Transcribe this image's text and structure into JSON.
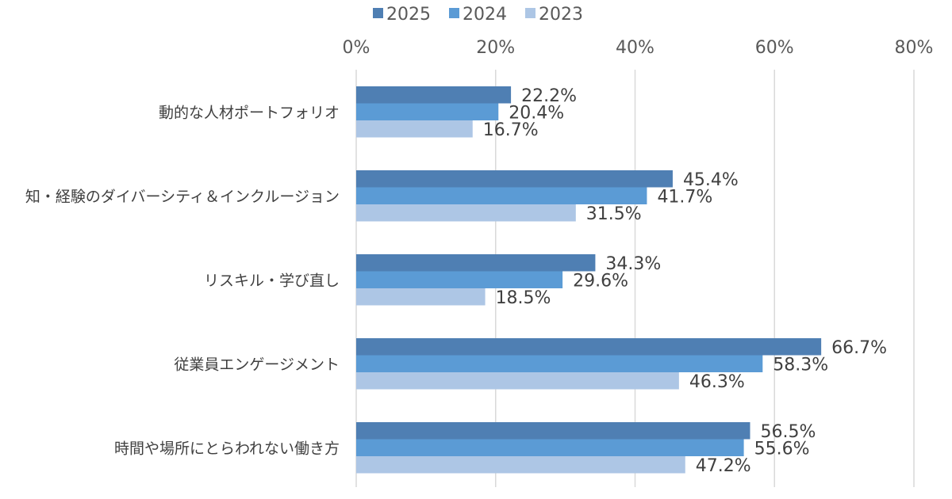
{
  "chart_data": {
    "type": "bar",
    "orientation": "horizontal",
    "categories": [
      "動的な人材ポートフォリオ",
      "知・経験のダイバーシティ＆インクルージョン",
      "リスキル・学び直し",
      "従業員エンゲージメント",
      "時間や場所にとらわれない働き方"
    ],
    "series": [
      {
        "name": "2025",
        "color": "#4f7fb3",
        "values": [
          22.2,
          45.4,
          34.3,
          66.7,
          56.5
        ],
        "labels": [
          "22.2%",
          "45.4%",
          "34.3%",
          "66.7%",
          "56.5%"
        ]
      },
      {
        "name": "2024",
        "color": "#5b9bd5",
        "values": [
          20.4,
          41.7,
          29.6,
          58.3,
          55.6
        ],
        "labels": [
          "20.4%",
          "41.7%",
          "29.6%",
          "58.3%",
          "55.6%"
        ]
      },
      {
        "name": "2023",
        "color": "#adc6e5",
        "values": [
          16.7,
          31.5,
          18.5,
          46.3,
          47.2
        ],
        "labels": [
          "16.7%",
          "31.5%",
          "18.5%",
          "46.3%",
          "47.2%"
        ]
      }
    ],
    "x_ticks": [
      "0%",
      "20%",
      "40%",
      "60%",
      "80%"
    ],
    "xlim": [
      0,
      80
    ],
    "x_axis_position": "top",
    "grid": true,
    "legend": "top-center"
  }
}
